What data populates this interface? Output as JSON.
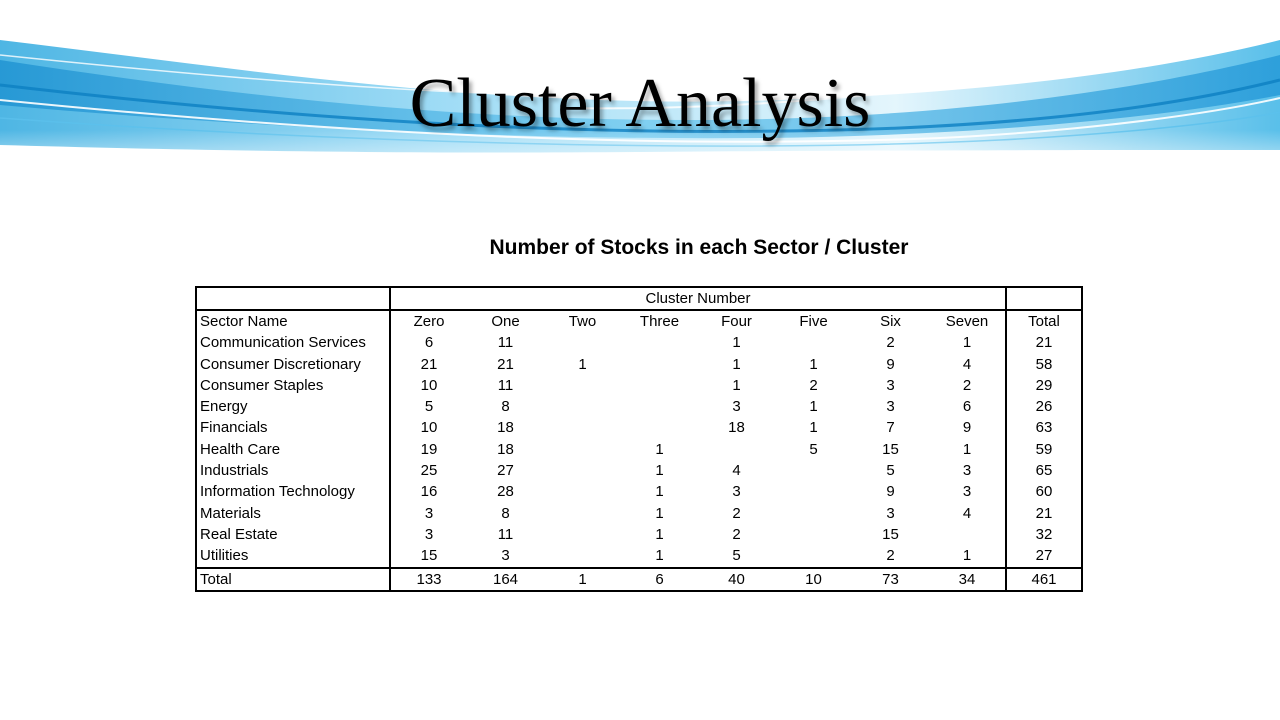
{
  "slide": {
    "title": "Cluster Analysis",
    "table_heading": "Number of Stocks in each Sector / Cluster"
  },
  "table": {
    "group_header": "Cluster Number",
    "columns": [
      "Sector Name",
      "Zero",
      "One",
      "Two",
      "Three",
      "Four",
      "Five",
      "Six",
      "Seven",
      "Total"
    ],
    "rows": [
      [
        "Communication Services",
        "6",
        "11",
        "",
        "",
        "1",
        "",
        "2",
        "1",
        "21"
      ],
      [
        "Consumer Discretionary",
        "21",
        "21",
        "1",
        "",
        "1",
        "1",
        "9",
        "4",
        "58"
      ],
      [
        "Consumer Staples",
        "10",
        "11",
        "",
        "",
        "1",
        "2",
        "3",
        "2",
        "29"
      ],
      [
        "Energy",
        "5",
        "8",
        "",
        "",
        "3",
        "1",
        "3",
        "6",
        "26"
      ],
      [
        "Financials",
        "10",
        "18",
        "",
        "",
        "18",
        "1",
        "7",
        "9",
        "63"
      ],
      [
        "Health Care",
        "19",
        "18",
        "",
        "1",
        "",
        "5",
        "15",
        "1",
        "59"
      ],
      [
        "Industrials",
        "25",
        "27",
        "",
        "1",
        "4",
        "",
        "5",
        "3",
        "65"
      ],
      [
        "Information Technology",
        "16",
        "28",
        "",
        "1",
        "3",
        "",
        "9",
        "3",
        "60"
      ],
      [
        "Materials",
        "3",
        "8",
        "",
        "1",
        "2",
        "",
        "3",
        "4",
        "21"
      ],
      [
        "Real Estate",
        "3",
        "11",
        "",
        "1",
        "2",
        "",
        "15",
        "",
        "32"
      ],
      [
        "Utilities",
        "15",
        "3",
        "",
        "1",
        "5",
        "",
        "2",
        "1",
        "27"
      ]
    ],
    "total_row": [
      "Total",
      "133",
      "164",
      "1",
      "6",
      "40",
      "10",
      "73",
      "34",
      "461"
    ]
  }
}
